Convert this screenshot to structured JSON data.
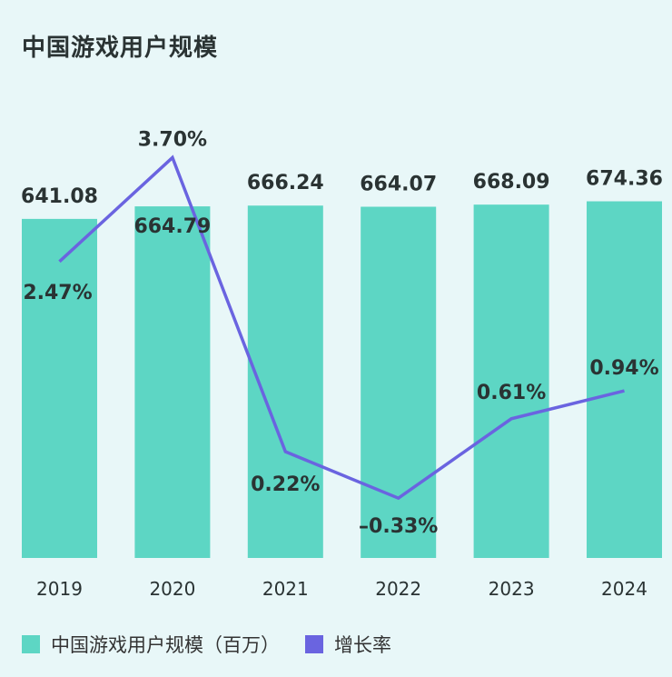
{
  "title": "中国游戏用户规模",
  "chart_data": {
    "type": "bar+line",
    "categories": [
      "2019",
      "2020",
      "2021",
      "2022",
      "2023",
      "2024"
    ],
    "series": [
      {
        "name": "中国游戏用户规模（百万）",
        "type": "bar",
        "values": [
          641.08,
          664.79,
          666.24,
          664.07,
          668.09,
          674.36
        ],
        "labels": [
          "641.08",
          "664.79",
          "666.24",
          "664.07",
          "668.09",
          "674.36"
        ],
        "color": "#5dd6c4"
      },
      {
        "name": "增长率",
        "type": "line",
        "values": [
          2.47,
          3.7,
          0.22,
          -0.33,
          0.61,
          0.94
        ],
        "labels": [
          "2.47%",
          "3.70%",
          "0.22%",
          "–0.33%",
          "0.61%",
          "0.94%"
        ],
        "color": "#6a64e0"
      }
    ],
    "grid": false,
    "legend": "bottom-left"
  },
  "legend": {
    "bar_label": "中国游戏用户规模（百万）",
    "line_label": "增长率"
  }
}
